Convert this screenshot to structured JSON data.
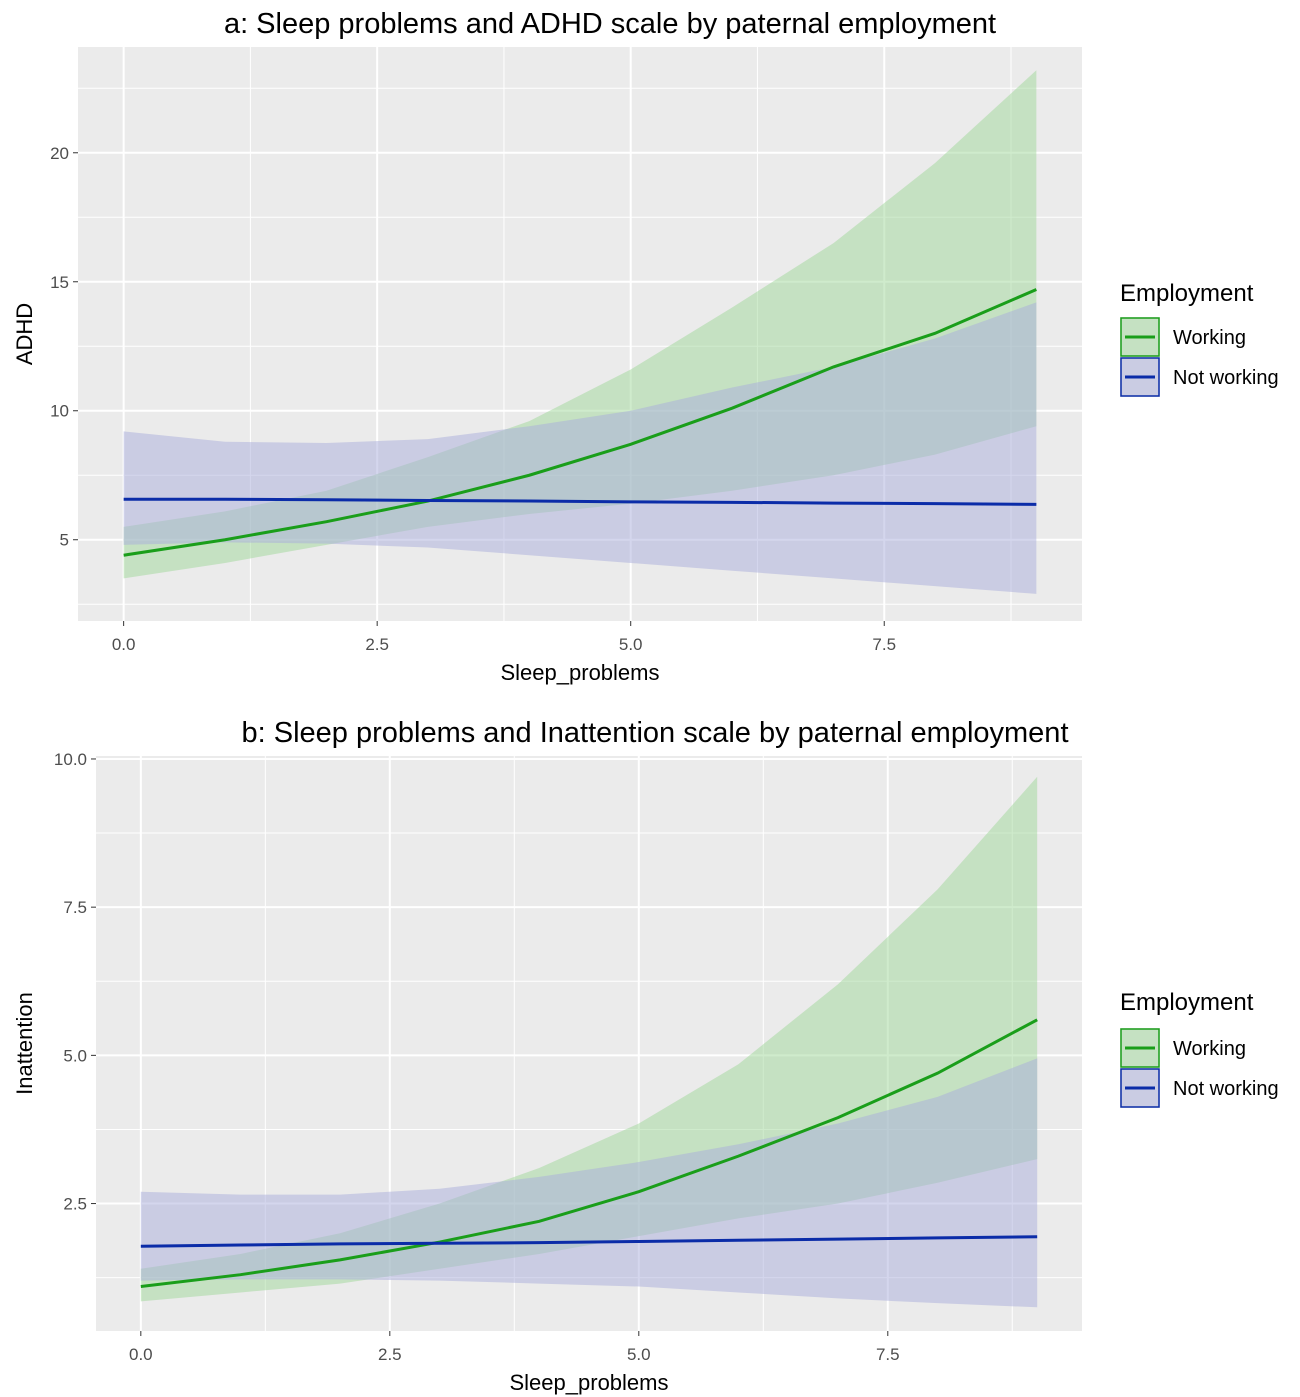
{
  "chart_data": [
    {
      "type": "line",
      "title": "a: Sleep problems and ADHD scale by paternal employment",
      "xlabel": "Sleep_problems",
      "ylabel": "ADHD",
      "xlim": [
        -0.45,
        9.45
      ],
      "ylim": [
        1.85,
        24.1
      ],
      "x_ticks": [
        0.0,
        2.5,
        5.0,
        7.5
      ],
      "x_tick_labels": [
        "0.0",
        "2.5",
        "5.0",
        "7.5"
      ],
      "y_ticks": [
        5,
        10,
        15,
        20
      ],
      "y_tick_labels": [
        "5",
        "10",
        "15",
        "20"
      ],
      "grid": true,
      "legend": {
        "title": "Employment",
        "position": "right"
      },
      "series": [
        {
          "name": "Working",
          "color": "#1a9e1a",
          "band_color": "#9fd89a",
          "x": [
            0,
            1,
            2,
            3,
            4,
            5,
            6,
            7,
            8,
            9
          ],
          "y": [
            4.4,
            5.0,
            5.7,
            6.5,
            7.5,
            8.7,
            10.1,
            11.7,
            13.0,
            14.7
          ],
          "lower": [
            3.5,
            4.1,
            4.8,
            5.5,
            6.0,
            6.4,
            6.9,
            7.5,
            8.3,
            9.4
          ],
          "upper": [
            5.5,
            6.1,
            6.9,
            8.2,
            9.6,
            11.6,
            14.0,
            16.5,
            19.6,
            23.2
          ]
        },
        {
          "name": "Not working",
          "color": "#0b2ca8",
          "band_color": "#a9aedc",
          "x": [
            0,
            1,
            2,
            3,
            4,
            5,
            6,
            7,
            8,
            9
          ],
          "y": [
            6.57,
            6.57,
            6.55,
            6.52,
            6.5,
            6.47,
            6.45,
            6.42,
            6.4,
            6.37
          ],
          "lower": [
            4.8,
            4.9,
            4.85,
            4.7,
            4.4,
            4.1,
            3.8,
            3.5,
            3.2,
            2.9
          ],
          "upper": [
            9.2,
            8.8,
            8.75,
            8.9,
            9.4,
            10.0,
            10.9,
            11.7,
            12.8,
            14.2
          ]
        }
      ]
    },
    {
      "type": "line",
      "title": "b: Sleep problems and Inattention scale by paternal employment",
      "xlabel": "Sleep_problems",
      "ylabel": "Inattention",
      "xlim": [
        -0.45,
        9.45
      ],
      "ylim": [
        0.35,
        10.05
      ],
      "x_ticks": [
        0.0,
        2.5,
        5.0,
        7.5
      ],
      "x_tick_labels": [
        "0.0",
        "2.5",
        "5.0",
        "7.5"
      ],
      "y_ticks": [
        2.5,
        5.0,
        7.5,
        10.0
      ],
      "y_tick_labels": [
        "2.5",
        "5.0",
        "7.5",
        "10.0"
      ],
      "grid": true,
      "legend": {
        "title": "Employment",
        "position": "right"
      },
      "series": [
        {
          "name": "Working",
          "color": "#1a9e1a",
          "band_color": "#9fd89a",
          "x": [
            0,
            1,
            2,
            3,
            4,
            5,
            6,
            7,
            8,
            9
          ],
          "y": [
            1.1,
            1.3,
            1.55,
            1.85,
            2.2,
            2.7,
            3.3,
            3.95,
            4.7,
            5.6
          ],
          "lower": [
            0.85,
            1.0,
            1.15,
            1.4,
            1.65,
            1.95,
            2.25,
            2.5,
            2.85,
            3.25
          ],
          "upper": [
            1.4,
            1.65,
            2.0,
            2.5,
            3.1,
            3.85,
            4.85,
            6.2,
            7.8,
            9.7
          ]
        },
        {
          "name": "Not working",
          "color": "#0b2ca8",
          "band_color": "#a9aedc",
          "x": [
            0,
            1,
            2,
            3,
            4,
            5,
            6,
            7,
            8,
            9
          ],
          "y": [
            1.78,
            1.8,
            1.82,
            1.83,
            1.84,
            1.86,
            1.88,
            1.9,
            1.92,
            1.94
          ],
          "lower": [
            1.2,
            1.22,
            1.22,
            1.2,
            1.15,
            1.1,
            1.0,
            0.9,
            0.82,
            0.75
          ],
          "upper": [
            2.7,
            2.65,
            2.65,
            2.75,
            2.95,
            3.2,
            3.5,
            3.85,
            4.3,
            4.95
          ]
        }
      ]
    }
  ]
}
